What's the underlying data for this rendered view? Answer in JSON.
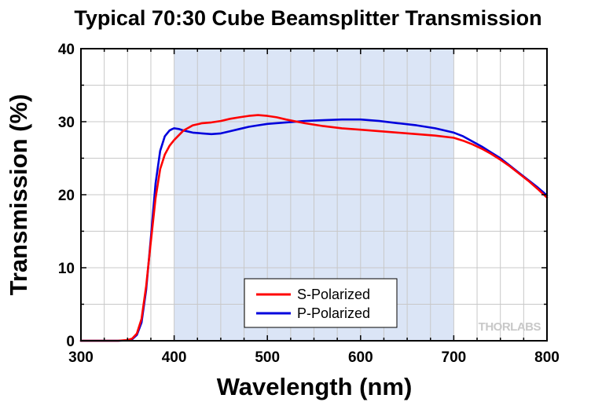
{
  "chart_data": {
    "type": "line",
    "title": "Typical 70:30 Cube Beamsplitter Transmission",
    "xlabel": "Wavelength (nm)",
    "ylabel": "Transmission (%)",
    "xlim": [
      300,
      800
    ],
    "ylim": [
      0,
      40
    ],
    "x_ticks": [
      300,
      400,
      500,
      600,
      700,
      800
    ],
    "y_ticks": [
      0,
      10,
      20,
      30,
      40
    ],
    "x_minor_step": 25,
    "y_minor_step": 5,
    "grid": true,
    "highlight_band": {
      "x_range": [
        400,
        700
      ],
      "color": "#dbe5f6"
    },
    "legend": {
      "placement": "bottom-center",
      "entries": [
        "S-Polarized",
        "P-Polarized"
      ]
    },
    "watermark": "THORLABS",
    "series": [
      {
        "name": "S-Polarized",
        "color": "#ff0000",
        "x": [
          300,
          340,
          350,
          355,
          360,
          365,
          370,
          375,
          380,
          385,
          390,
          395,
          400,
          410,
          420,
          430,
          440,
          450,
          460,
          470,
          480,
          490,
          500,
          510,
          520,
          540,
          560,
          580,
          600,
          620,
          640,
          660,
          680,
          700,
          710,
          720,
          730,
          740,
          750,
          760,
          770,
          780,
          790,
          800
        ],
        "y": [
          0,
          0,
          0.1,
          0.3,
          1.0,
          3.0,
          7.5,
          13.5,
          19.5,
          23.5,
          25.5,
          26.7,
          27.5,
          28.8,
          29.5,
          29.8,
          29.9,
          30.1,
          30.4,
          30.6,
          30.8,
          30.9,
          30.8,
          30.6,
          30.3,
          29.8,
          29.4,
          29.1,
          28.9,
          28.7,
          28.5,
          28.3,
          28.1,
          27.8,
          27.4,
          26.9,
          26.3,
          25.6,
          24.8,
          23.9,
          22.9,
          21.9,
          20.8,
          19.6
        ]
      },
      {
        "name": "P-Polarized",
        "color": "#0000dd",
        "x": [
          300,
          340,
          350,
          355,
          360,
          365,
          370,
          375,
          380,
          385,
          390,
          395,
          398,
          400,
          405,
          410,
          420,
          430,
          440,
          450,
          460,
          470,
          480,
          490,
          500,
          520,
          540,
          560,
          580,
          600,
          620,
          640,
          660,
          680,
          700,
          710,
          720,
          730,
          740,
          750,
          760,
          770,
          780,
          790,
          800
        ],
        "y": [
          0,
          0,
          0.05,
          0.2,
          0.8,
          2.5,
          7.0,
          14.0,
          21.5,
          26.0,
          28.0,
          28.8,
          29.0,
          29.1,
          29.0,
          28.8,
          28.5,
          28.4,
          28.3,
          28.4,
          28.7,
          29.0,
          29.3,
          29.5,
          29.7,
          29.9,
          30.1,
          30.2,
          30.3,
          30.3,
          30.1,
          29.8,
          29.5,
          29.1,
          28.5,
          28.0,
          27.3,
          26.6,
          25.8,
          25.0,
          24.0,
          23.0,
          22.0,
          21.0,
          19.9
        ]
      }
    ]
  }
}
